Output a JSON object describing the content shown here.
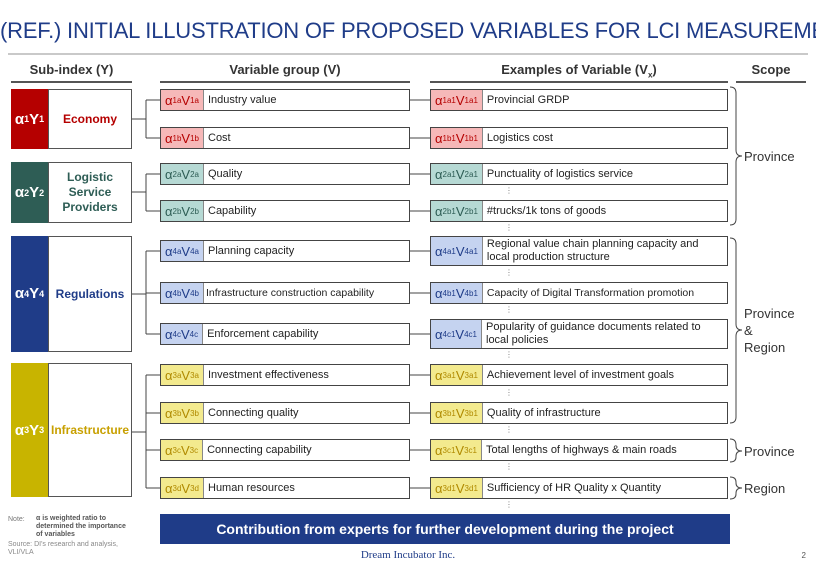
{
  "title": "(REF.) INITIAL ILLUSTRATION OF PROPOSED VARIABLES FOR LCI MEASUREMENT",
  "headers": {
    "subindex": "Sub-index (Y)",
    "group": "Variable group (V)",
    "examples": "Examples of Variable (V",
    "examples_sub": "x",
    "examples_close": ")",
    "scope": "Scope"
  },
  "colors": {
    "economy": "#b50000",
    "logistic": "#2e5d55",
    "regulations": "#1f3c88",
    "infrastructure": "#c8b400",
    "economy_fill": "#f6b8b8",
    "logistic_fill": "#b6d9d4",
    "regulations_fill": "#c5d3f0",
    "infrastructure_fill": "#f3ea8e"
  },
  "subindices": [
    {
      "a": "α",
      "asub": "1",
      "y": "Y",
      "ysub": "1",
      "name": "Economy"
    },
    {
      "a": "α",
      "asub": "2",
      "y": "Y",
      "ysub": "2",
      "name": "Logistic Service Providers"
    },
    {
      "a": "α",
      "asub": "4",
      "y": "Y",
      "ysub": "4",
      "name": "Regulations"
    },
    {
      "a": "α",
      "asub": "3",
      "y": "Y",
      "ysub": "3",
      "name": "Infrastructure"
    }
  ],
  "groups": [
    {
      "asub": "1a",
      "vsub": "1a",
      "label": "Industry value"
    },
    {
      "asub": "1b",
      "vsub": "1b",
      "label": "Cost"
    },
    {
      "asub": "2a",
      "vsub": "2a",
      "label": "Quality"
    },
    {
      "asub": "2b",
      "vsub": "2b",
      "label": "Capability"
    },
    {
      "asub": "4a",
      "vsub": "4a",
      "label": "Planning capacity"
    },
    {
      "asub": "4b",
      "vsub": "4b",
      "label": "Infrastructure construction capability"
    },
    {
      "asub": "4c",
      "vsub": "4c",
      "label": "Enforcement capability"
    },
    {
      "asub": "3a",
      "vsub": "3a",
      "label": "Investment effectiveness"
    },
    {
      "asub": "3b",
      "vsub": "3b",
      "label": "Connecting quality"
    },
    {
      "asub": "3c",
      "vsub": "3c",
      "label": "Connecting capability"
    },
    {
      "asub": "3d",
      "vsub": "3d",
      "label": "Human resources"
    }
  ],
  "examples": [
    {
      "asub": "1a1",
      "vsub": "1a1",
      "label": "Provincial GRDP"
    },
    {
      "asub": "1b1",
      "vsub": "1b1",
      "label": "Logistics cost"
    },
    {
      "asub": "2a1",
      "vsub": "2a1",
      "label": "Punctuality of logistics service"
    },
    {
      "asub": "2b1",
      "vsub": "2b1",
      "label": "#trucks/1k tons of goods"
    },
    {
      "asub": "4a1",
      "vsub": "4a1",
      "label": "Regional value chain planning capacity and local production structure"
    },
    {
      "asub": "4b1",
      "vsub": "4b1",
      "label": "Capacity of Digital Transformation promotion"
    },
    {
      "asub": "4c1",
      "vsub": "4c1",
      "label": "Popularity of guidance documents related to local policies"
    },
    {
      "asub": "3a1",
      "vsub": "3a1",
      "label": "Achievement level of investment goals"
    },
    {
      "asub": "3b1",
      "vsub": "3b1",
      "label": "Quality of infrastructure"
    },
    {
      "asub": "3c1",
      "vsub": "3c1",
      "label": "Total lengths of highways & main roads"
    },
    {
      "asub": "3d1",
      "vsub": "3d1",
      "label": "Sufficiency of HR Quality x Quantity"
    }
  ],
  "scopes": {
    "province_1": "Province",
    "province_2": "Province",
    "and": "&",
    "region_2": "Region",
    "province_3": "Province",
    "region_4": "Region"
  },
  "note": {
    "label": "Note:",
    "text": "α is weighted ratio to determined the importance of variables"
  },
  "source": "Source: DI's research and analysis, VLI/VLA",
  "banner": "Contribution from experts for further development during the project",
  "company": "Dream Incubator Inc.",
  "page": "2"
}
